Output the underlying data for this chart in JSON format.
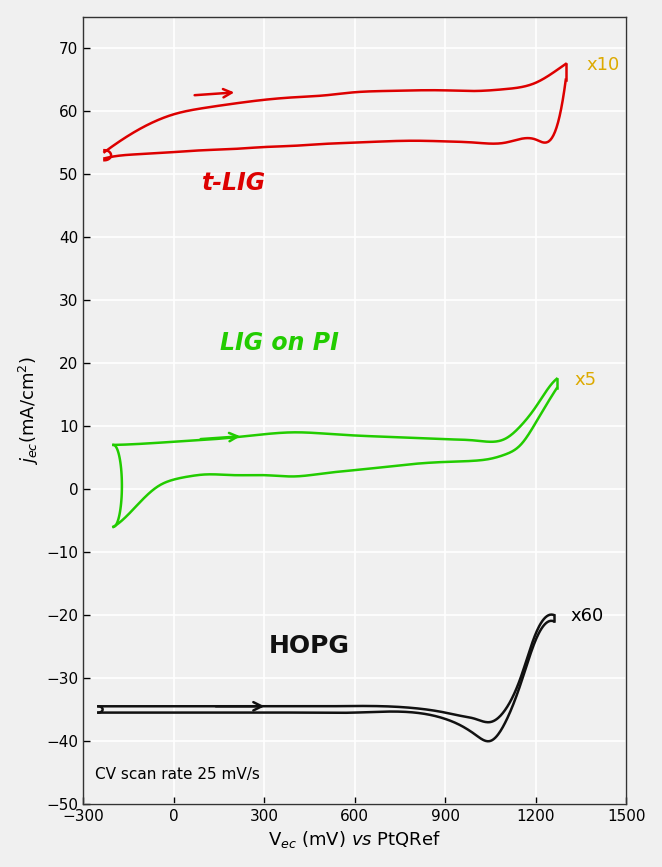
{
  "xlabel": "V$_{ec}$ (mV) $\\it{vs}$ PtQRef",
  "ylabel": "$j_{ec}$(mA/cm$^2$)",
  "xlim": [
    -300,
    1500
  ],
  "ylim": [
    -50,
    75
  ],
  "xticks": [
    -300,
    0,
    300,
    600,
    900,
    1200,
    1500
  ],
  "yticks": [
    -50,
    -40,
    -30,
    -20,
    -10,
    0,
    10,
    20,
    30,
    40,
    50,
    60,
    70
  ],
  "background_color": "#f0f0f0",
  "grid_color": "#ffffff",
  "tlig_color": "#dd0000",
  "lig_pi_color": "#22cc00",
  "hopg_color": "#111111",
  "annotation_color": "#ddaa00",
  "cv_scan_text": "CV scan rate 25 mV/s",
  "tlig_label": "t-LIG",
  "lig_pi_label": "LIG on PI",
  "hopg_label": "HOPG",
  "x10_label": "x10",
  "x5_label": "x5",
  "x60_label": "x60"
}
